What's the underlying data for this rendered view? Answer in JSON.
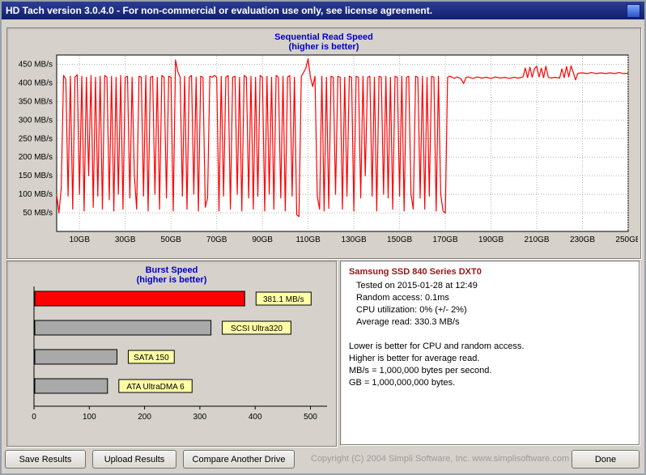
{
  "window": {
    "title": "HD Tach version 3.0.4.0  - For non-commercial or evaluation use only, see license agreement."
  },
  "info": {
    "title": "Samsung SSD 840 Series DXT0",
    "stats": [
      "Tested on 2015-01-28 at 12:49",
      "Random access: 0.1ms",
      "CPU utilization: 0% (+/- 2%)",
      "Average read: 330.3 MB/s"
    ],
    "notes": [
      "Lower is better for CPU and random access.",
      "Higher is better for average read.",
      "MB/s = 1,000,000 bytes per second.",
      "GB = 1,000,000,000 bytes."
    ]
  },
  "buttons": {
    "save": "Save Results",
    "upload": "Upload Results",
    "compare": "Compare Another Drive",
    "done": "Done"
  },
  "footer": {
    "copyright": "Copyright (C) 2004 Simpli Software, Inc.  www.simplisoftware.com"
  },
  "colors": {
    "title_bar": "#1b2a7b",
    "chart_title": "#0000c8",
    "line": "#ff0000",
    "bar_red": "#ff0000",
    "bar_gray": "#a9a9a9",
    "label_box": "#ffffa6",
    "info_title": "#9a1515"
  },
  "chart_data": [
    {
      "id": "sequential_read",
      "type": "line",
      "title": "Sequential Read Speed",
      "subtitle": "(higher is better)",
      "xlim": [
        0,
        250
      ],
      "ylim": [
        0,
        475
      ],
      "x_ticks": [
        10,
        30,
        50,
        70,
        90,
        110,
        130,
        150,
        170,
        190,
        210,
        230,
        250
      ],
      "x_tick_labels": [
        "10GB",
        "30GB",
        "50GB",
        "70GB",
        "90GB",
        "110GB",
        "130GB",
        "150GB",
        "170GB",
        "190GB",
        "210GB",
        "230GB",
        "250GB"
      ],
      "y_ticks": [
        50,
        100,
        150,
        200,
        250,
        300,
        350,
        400,
        450
      ],
      "y_tick_labels": [
        "50 MB/s",
        "100 MB/s",
        "150 MB/s",
        "200 MB/s",
        "250 MB/s",
        "300 MB/s",
        "350 MB/s",
        "400 MB/s",
        "450 MB/s"
      ],
      "grid": true,
      "line_color": "#ff0000",
      "points": [
        [
          0,
          100
        ],
        [
          1,
          50
        ],
        [
          2,
          115
        ],
        [
          3,
          420
        ],
        [
          4,
          410
        ],
        [
          5,
          95
        ],
        [
          6,
          418
        ],
        [
          7,
          60
        ],
        [
          8,
          415
        ],
        [
          9,
          422
        ],
        [
          10,
          100
        ],
        [
          11,
          418
        ],
        [
          12,
          55
        ],
        [
          13,
          415
        ],
        [
          14,
          150
        ],
        [
          15,
          420
        ],
        [
          16,
          65
        ],
        [
          17,
          415
        ],
        [
          18,
          95
        ],
        [
          19,
          418
        ],
        [
          20,
          60
        ],
        [
          21,
          420
        ],
        [
          22,
          415
        ],
        [
          23,
          85
        ],
        [
          24,
          418
        ],
        [
          25,
          55
        ],
        [
          26,
          415
        ],
        [
          27,
          100
        ],
        [
          28,
          420
        ],
        [
          29,
          60
        ],
        [
          30,
          415
        ],
        [
          31,
          418
        ],
        [
          32,
          90
        ],
        [
          33,
          415
        ],
        [
          34,
          150
        ],
        [
          35,
          60
        ],
        [
          36,
          418
        ],
        [
          37,
          415
        ],
        [
          38,
          95
        ],
        [
          39,
          420
        ],
        [
          40,
          55
        ],
        [
          41,
          415
        ],
        [
          42,
          418
        ],
        [
          43,
          100
        ],
        [
          44,
          415
        ],
        [
          45,
          60
        ],
        [
          46,
          420
        ],
        [
          47,
          415
        ],
        [
          48,
          90
        ],
        [
          49,
          418
        ],
        [
          50,
          415
        ],
        [
          51,
          55
        ],
        [
          52,
          462
        ],
        [
          53,
          430
        ],
        [
          54,
          415
        ],
        [
          55,
          95
        ],
        [
          56,
          418
        ],
        [
          57,
          60
        ],
        [
          58,
          415
        ],
        [
          59,
          420
        ],
        [
          60,
          100
        ],
        [
          61,
          415
        ],
        [
          62,
          55
        ],
        [
          63,
          418
        ],
        [
          64,
          415
        ],
        [
          65,
          65
        ],
        [
          66,
          90
        ],
        [
          67,
          418
        ],
        [
          68,
          415
        ],
        [
          69,
          420
        ],
        [
          70,
          415
        ],
        [
          71,
          55
        ],
        [
          72,
          418
        ],
        [
          73,
          95
        ],
        [
          74,
          415
        ],
        [
          75,
          420
        ],
        [
          76,
          60
        ],
        [
          77,
          415
        ],
        [
          78,
          418
        ],
        [
          79,
          100
        ],
        [
          80,
          415
        ],
        [
          81,
          55
        ],
        [
          82,
          420
        ],
        [
          83,
          415
        ],
        [
          84,
          90
        ],
        [
          85,
          418
        ],
        [
          86,
          60
        ],
        [
          87,
          415
        ],
        [
          88,
          95
        ],
        [
          89,
          420
        ],
        [
          90,
          415
        ],
        [
          91,
          55
        ],
        [
          92,
          418
        ],
        [
          93,
          100
        ],
        [
          94,
          415
        ],
        [
          95,
          60
        ],
        [
          96,
          420
        ],
        [
          97,
          415
        ],
        [
          98,
          90
        ],
        [
          99,
          418
        ],
        [
          100,
          55
        ],
        [
          101,
          415
        ],
        [
          102,
          420
        ],
        [
          103,
          95
        ],
        [
          104,
          415
        ],
        [
          105,
          45
        ],
        [
          106,
          40
        ],
        [
          107,
          418
        ],
        [
          108,
          428
        ],
        [
          109,
          440
        ],
        [
          110,
          465
        ],
        [
          111,
          415
        ],
        [
          112,
          390
        ],
        [
          113,
          418
        ],
        [
          114,
          95
        ],
        [
          115,
          60
        ],
        [
          116,
          418
        ],
        [
          117,
          55
        ],
        [
          118,
          415
        ],
        [
          119,
          62
        ],
        [
          120,
          418
        ],
        [
          121,
          415
        ],
        [
          122,
          100
        ],
        [
          123,
          418
        ],
        [
          124,
          415
        ],
        [
          125,
          60
        ],
        [
          126,
          415
        ],
        [
          127,
          95
        ],
        [
          128,
          418
        ],
        [
          129,
          415
        ],
        [
          130,
          55
        ],
        [
          131,
          418
        ],
        [
          132,
          415
        ],
        [
          133,
          90
        ],
        [
          134,
          418
        ],
        [
          135,
          150
        ],
        [
          136,
          415
        ],
        [
          137,
          418
        ],
        [
          138,
          95
        ],
        [
          139,
          415
        ],
        [
          140,
          55
        ],
        [
          141,
          418
        ],
        [
          142,
          415
        ],
        [
          143,
          100
        ],
        [
          144,
          418
        ],
        [
          145,
          90
        ],
        [
          146,
          415
        ],
        [
          147,
          60
        ],
        [
          148,
          418
        ],
        [
          149,
          415
        ],
        [
          150,
          95
        ],
        [
          151,
          418
        ],
        [
          152,
          55
        ],
        [
          153,
          415
        ],
        [
          154,
          418
        ],
        [
          155,
          100
        ],
        [
          156,
          60
        ],
        [
          157,
          418
        ],
        [
          158,
          415
        ],
        [
          159,
          90
        ],
        [
          160,
          418
        ],
        [
          161,
          60
        ],
        [
          162,
          415
        ],
        [
          163,
          95
        ],
        [
          164,
          418
        ],
        [
          165,
          415
        ],
        [
          166,
          55
        ],
        [
          167,
          418
        ],
        [
          168,
          100
        ],
        [
          169,
          55
        ],
        [
          170,
          50
        ],
        [
          171,
          415
        ],
        [
          172,
          418
        ],
        [
          173,
          415
        ],
        [
          174,
          412
        ],
        [
          175,
          416
        ],
        [
          176,
          414
        ],
        [
          177,
          410
        ],
        [
          178,
          398
        ],
        [
          179,
          414
        ],
        [
          180,
          416
        ],
        [
          182,
          412
        ],
        [
          184,
          416
        ],
        [
          186,
          413
        ],
        [
          188,
          415
        ],
        [
          190,
          412
        ],
        [
          192,
          416
        ],
        [
          194,
          413
        ],
        [
          196,
          415
        ],
        [
          198,
          412
        ],
        [
          200,
          415
        ],
        [
          202,
          413
        ],
        [
          204,
          416
        ],
        [
          205,
          440
        ],
        [
          206,
          414
        ],
        [
          207,
          442
        ],
        [
          208,
          415
        ],
        [
          209,
          438
        ],
        [
          210,
          445
        ],
        [
          211,
          416
        ],
        [
          212,
          440
        ],
        [
          213,
          414
        ],
        [
          214,
          445
        ],
        [
          215,
          416
        ],
        [
          216,
          413
        ],
        [
          218,
          415
        ],
        [
          220,
          413
        ],
        [
          221,
          438
        ],
        [
          222,
          414
        ],
        [
          223,
          444
        ],
        [
          224,
          416
        ],
        [
          225,
          446
        ],
        [
          226,
          428
        ],
        [
          227,
          408
        ],
        [
          228,
          426
        ],
        [
          230,
          427
        ],
        [
          232,
          425
        ],
        [
          234,
          428
        ],
        [
          236,
          425
        ],
        [
          238,
          427
        ],
        [
          240,
          425
        ],
        [
          242,
          427
        ],
        [
          244,
          425
        ],
        [
          246,
          428
        ],
        [
          248,
          425
        ],
        [
          250,
          426
        ]
      ]
    },
    {
      "id": "burst_speed",
      "type": "bar",
      "orientation": "horizontal",
      "title": "Burst Speed",
      "subtitle": "(higher is better)",
      "xlim": [
        0,
        530
      ],
      "x_ticks": [
        0,
        100,
        200,
        300,
        400,
        500
      ],
      "x_tick_labels": [
        "0",
        "100",
        "200",
        "300",
        "400",
        "500"
      ],
      "bars": [
        {
          "label": "381.1 MB/s",
          "value": 381.1,
          "color": "#ff0000"
        },
        {
          "label": "SCSI Ultra320",
          "value": 320,
          "color": "#a9a9a9"
        },
        {
          "label": "SATA 150",
          "value": 150,
          "color": "#a9a9a9"
        },
        {
          "label": "ATA UltraDMA 6",
          "value": 133,
          "color": "#a9a9a9"
        }
      ]
    }
  ]
}
